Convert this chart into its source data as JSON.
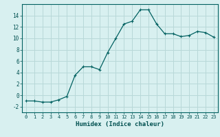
{
  "x": [
    0,
    1,
    2,
    3,
    4,
    5,
    6,
    7,
    8,
    9,
    10,
    11,
    12,
    13,
    14,
    15,
    16,
    17,
    18,
    19,
    20,
    21,
    22,
    23
  ],
  "y": [
    -1,
    -1,
    -1.2,
    -1.2,
    -0.8,
    -0.2,
    3.5,
    5.0,
    5.0,
    4.5,
    7.5,
    10.0,
    12.5,
    13.0,
    15.0,
    15.0,
    12.5,
    10.8,
    10.8,
    10.3,
    10.5,
    11.2,
    11.0,
    10.2
  ],
  "line_color": "#006060",
  "marker_color": "#006060",
  "bg_color": "#d8f0f0",
  "grid_color": "#b8d8d8",
  "axis_color": "#006060",
  "xlabel": "Humidex (Indice chaleur)",
  "xlim": [
    -0.5,
    23.5
  ],
  "ylim": [
    -3,
    16
  ],
  "yticks": [
    -2,
    0,
    2,
    4,
    6,
    8,
    10,
    12,
    14
  ],
  "xticks": [
    0,
    1,
    2,
    3,
    4,
    5,
    6,
    7,
    8,
    9,
    10,
    11,
    12,
    13,
    14,
    15,
    16,
    17,
    18,
    19,
    20,
    21,
    22,
    23
  ],
  "font_color": "#005050",
  "title": ""
}
